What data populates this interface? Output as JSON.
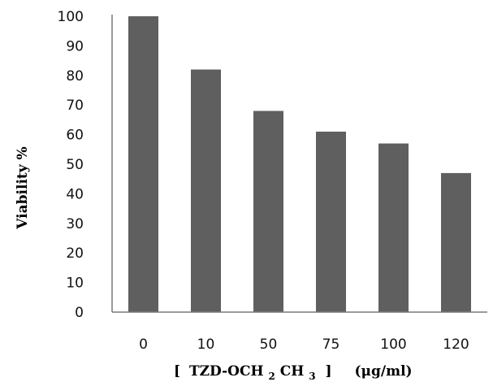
{
  "chart_data": {
    "type": "bar",
    "categories": [
      "0",
      "10",
      "50",
      "75",
      "100",
      "120"
    ],
    "values": [
      100,
      82,
      68,
      61,
      57,
      47
    ],
    "ylim": [
      0,
      100
    ],
    "yticks": [
      0,
      10,
      20,
      30,
      40,
      50,
      60,
      70,
      80,
      90,
      100
    ],
    "ylabel": "Viability  %",
    "xlabel": {
      "open_bracket": "[",
      "compound_part1": "TZD-OCH",
      "sub1": "2",
      "compound_part2": "CH",
      "sub2": "3",
      "close_bracket": "]",
      "units": "(μg/ml)"
    },
    "grid": false,
    "legend": "none",
    "bar_color": "#5f5f5f",
    "axis_color": "#7a7a7a"
  }
}
